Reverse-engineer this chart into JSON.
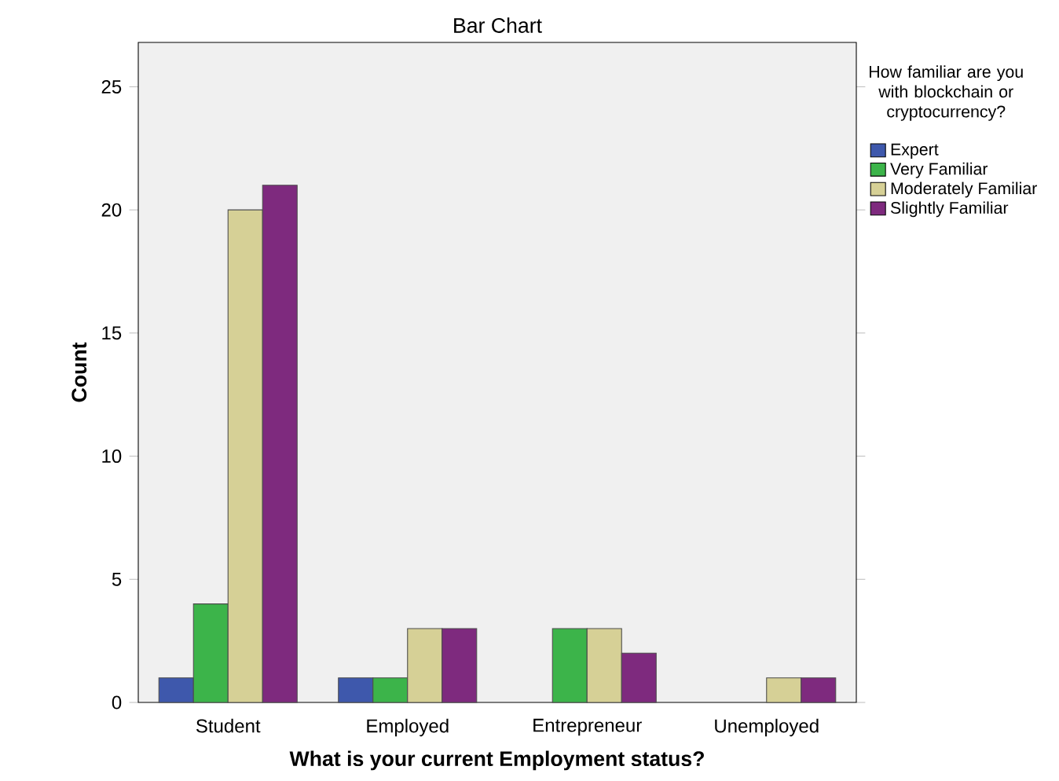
{
  "chart_data": {
    "type": "bar",
    "title": "Bar Chart",
    "xlabel": "What is your current Employment status?",
    "ylabel": "Count",
    "legend_title": "How familiar are you with blockchain or cryptocurrency?",
    "categories": [
      "Student",
      "Employed",
      "Entrepreneur",
      "Unemployed"
    ],
    "series": [
      {
        "name": "Expert",
        "color": "#3e58ac",
        "values": [
          1,
          1,
          null,
          null
        ]
      },
      {
        "name": "Very Familiar",
        "color": "#3cb44a",
        "values": [
          4,
          1,
          3,
          null
        ]
      },
      {
        "name": "Moderately Familiar",
        "color": "#d6d096",
        "values": [
          20,
          3,
          3,
          1
        ]
      },
      {
        "name": "Slightly Familiar",
        "color": "#7e2a7e",
        "values": [
          21,
          3,
          2,
          1
        ]
      }
    ],
    "ylim": [
      0,
      26.8
    ],
    "yticks": [
      0,
      5,
      10,
      15,
      20,
      25
    ],
    "grid": false,
    "legend": "right"
  }
}
